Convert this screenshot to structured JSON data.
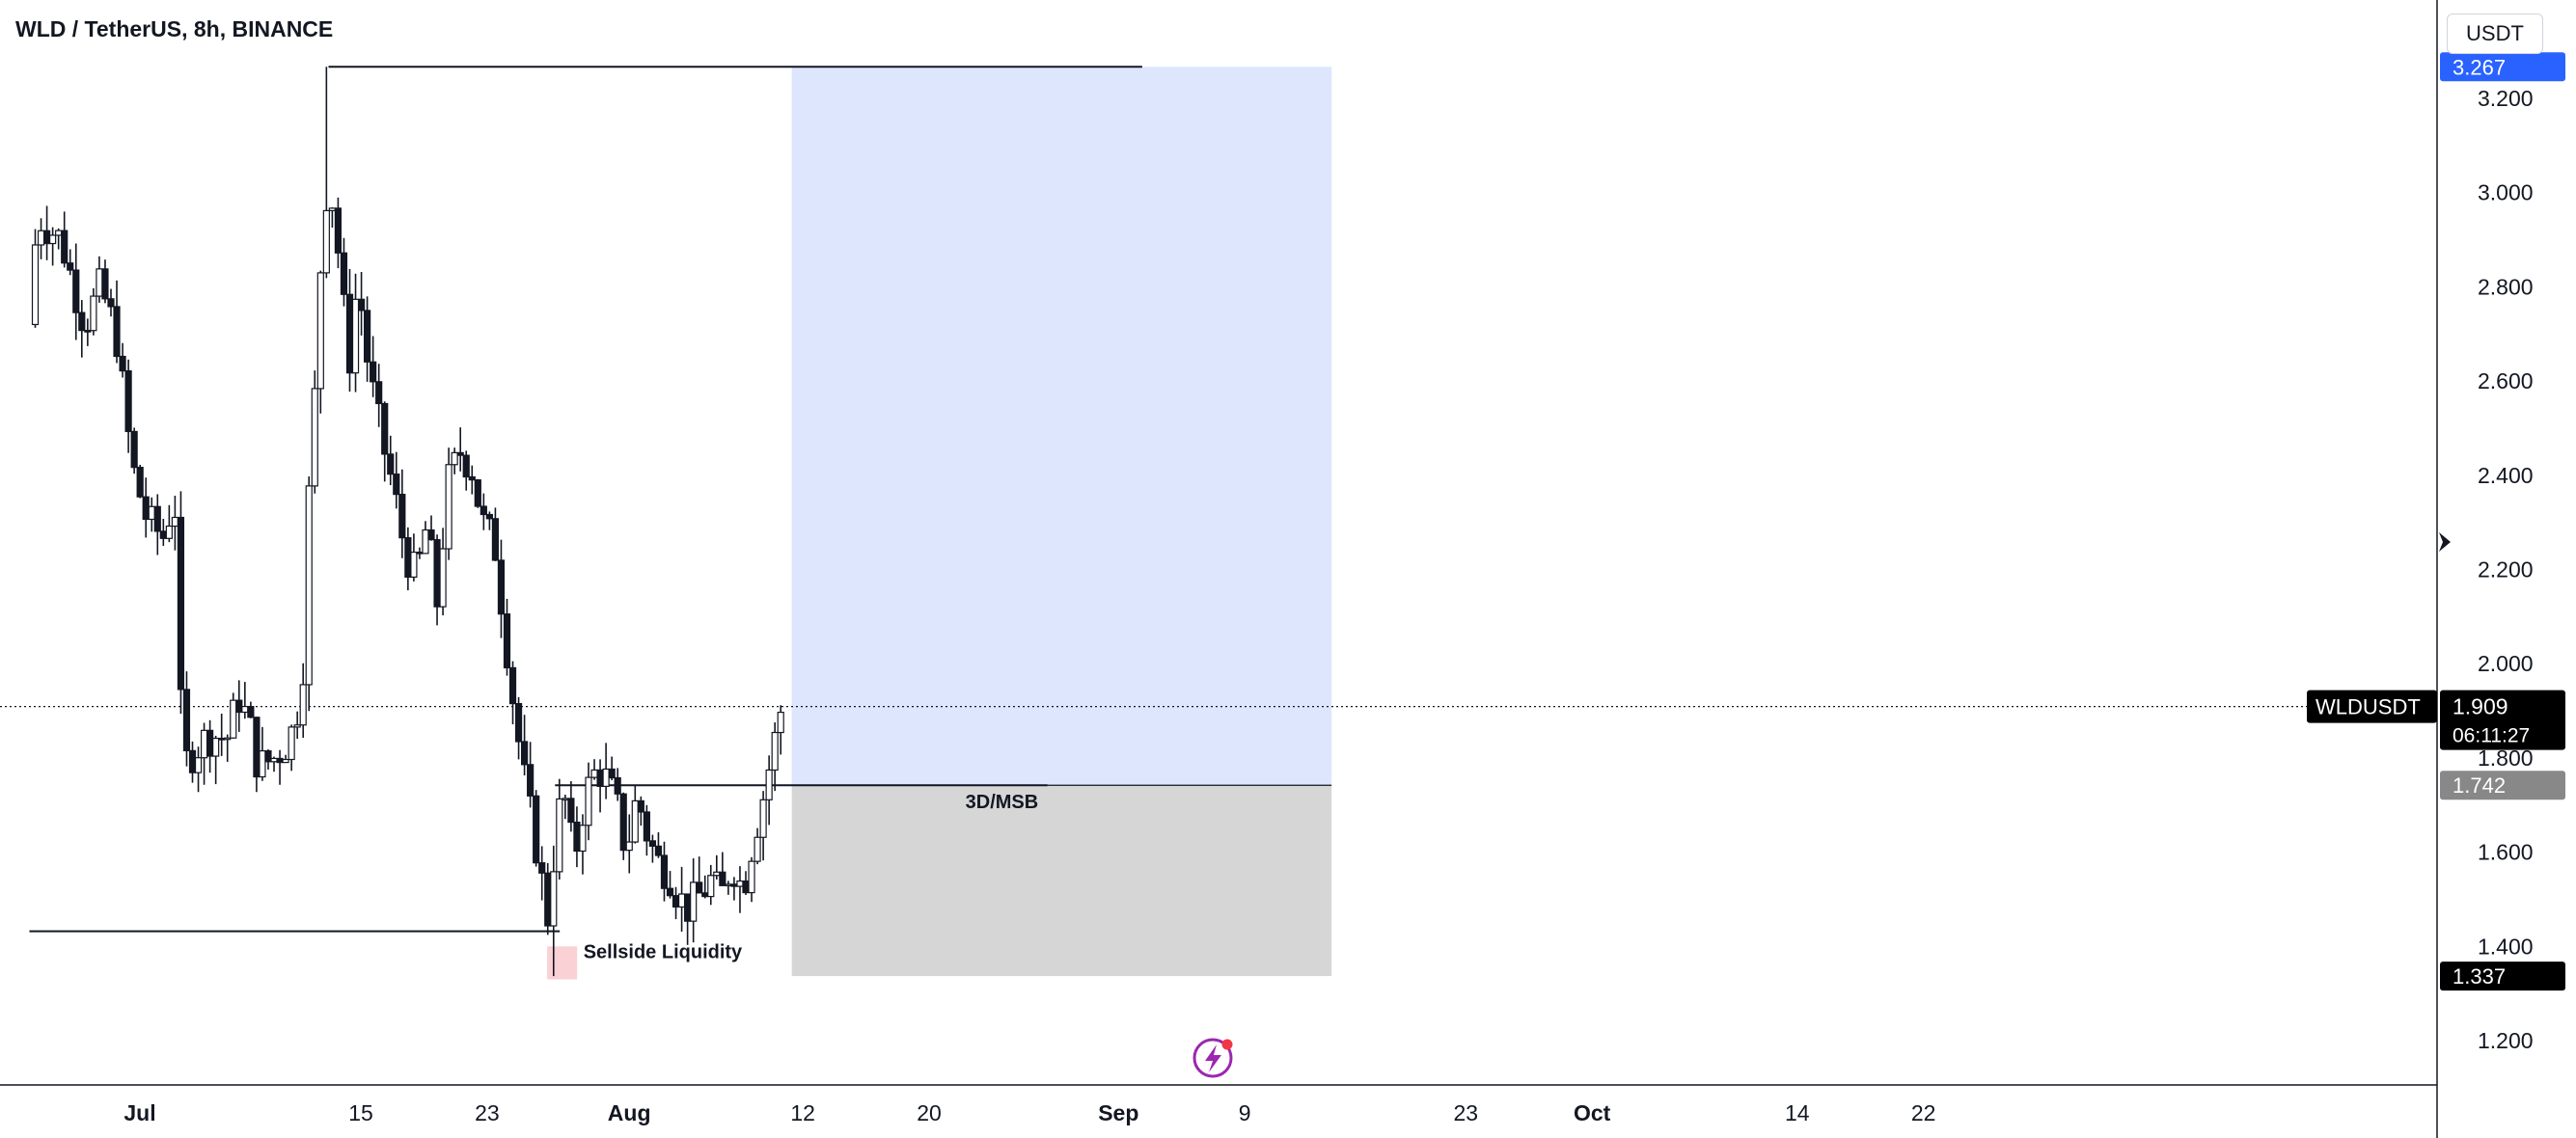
{
  "header": {
    "title": "WLD / TetherUS, 8h, BINANCE"
  },
  "toolbar": {
    "currency_label": "USDT"
  },
  "colors": {
    "candle": "#131722",
    "target_zone": "#dde6fd",
    "risk_zone": "#d6d6d6",
    "liquidity_box": "#fad1d5",
    "badge_blue": "#2962ff",
    "badge_black": "#000000",
    "badge_gray": "#888888"
  },
  "chart_data": {
    "type": "candlestick",
    "symbol": "WLDUSDT",
    "timeframe": "8h",
    "yaxis": {
      "ticks": [
        "1.200",
        "1.400",
        "1.600",
        "1.800",
        "2.000",
        "2.200",
        "2.400",
        "2.600",
        "2.800",
        "3.000",
        "3.200"
      ],
      "ylim": [
        1.1,
        3.33
      ]
    },
    "xaxis": {
      "ticks": [
        {
          "label": "Jul",
          "day": 1,
          "bold": true
        },
        {
          "label": "15",
          "day": 15,
          "bold": false
        },
        {
          "label": "23",
          "day": 23,
          "bold": false
        },
        {
          "label": "Aug",
          "day": 32,
          "bold": true
        },
        {
          "label": "12",
          "day": 43,
          "bold": false
        },
        {
          "label": "20",
          "day": 51,
          "bold": false
        },
        {
          "label": "Sep",
          "day": 63,
          "bold": true
        },
        {
          "label": "9",
          "day": 71,
          "bold": false
        },
        {
          "label": "23",
          "day": 85,
          "bold": false
        },
        {
          "label": "Oct",
          "day": 93,
          "bold": true
        },
        {
          "label": "14",
          "day": 106,
          "bold": false
        },
        {
          "label": "22",
          "day": 114,
          "bold": false
        }
      ]
    },
    "price_path": [
      [
        -6,
        2.72
      ],
      [
        -5.5,
        2.95
      ],
      [
        -4,
        2.9
      ],
      [
        -2.5,
        2.72
      ],
      [
        -1.5,
        2.8
      ],
      [
        -0.5,
        2.7
      ],
      [
        0.5,
        2.42
      ],
      [
        1.5,
        2.3
      ],
      [
        2.5,
        2.27
      ],
      [
        3.2,
        2.36
      ],
      [
        3.7,
        1.78
      ],
      [
        4.5,
        1.82
      ],
      [
        5.5,
        1.85
      ],
      [
        6.5,
        1.84
      ],
      [
        7.3,
        1.93
      ],
      [
        8,
        1.86
      ],
      [
        8.5,
        1.78
      ],
      [
        9.5,
        1.8
      ],
      [
        10.5,
        1.84
      ],
      [
        11.3,
        1.95
      ],
      [
        11.6,
        2.3
      ],
      [
        12,
        2.5
      ],
      [
        12.4,
        2.82
      ],
      [
        12.8,
        3.0
      ],
      [
        13.3,
        2.98
      ],
      [
        13.8,
        2.78
      ],
      [
        14.3,
        2.65
      ],
      [
        14.8,
        2.82
      ],
      [
        15.5,
        2.62
      ],
      [
        16.3,
        2.48
      ],
      [
        17,
        2.38
      ],
      [
        17.8,
        2.24
      ],
      [
        18.5,
        2.18
      ],
      [
        19.2,
        2.3
      ],
      [
        19.8,
        2.12
      ],
      [
        20.5,
        2.38
      ],
      [
        21.3,
        2.45
      ],
      [
        22,
        2.42
      ],
      [
        22.7,
        2.3
      ],
      [
        23.5,
        2.25
      ],
      [
        24.2,
        2.05
      ],
      [
        24.8,
        1.88
      ],
      [
        25.5,
        1.72
      ],
      [
        26.3,
        1.58
      ],
      [
        26.8,
        1.45
      ],
      [
        27.3,
        1.62
      ],
      [
        27.8,
        1.74
      ],
      [
        28.5,
        1.58
      ],
      [
        29.2,
        1.72
      ],
      [
        30,
        1.78
      ],
      [
        30.6,
        1.75
      ],
      [
        31.2,
        1.7
      ],
      [
        31.8,
        1.6
      ],
      [
        32.5,
        1.72
      ],
      [
        33.2,
        1.63
      ],
      [
        33.8,
        1.58
      ],
      [
        34.5,
        1.56
      ],
      [
        35.2,
        1.5
      ],
      [
        35.8,
        1.48
      ],
      [
        36.5,
        1.51
      ],
      [
        37.2,
        1.54
      ],
      [
        37.8,
        1.5
      ],
      [
        38.5,
        1.58
      ],
      [
        39.2,
        1.52
      ],
      [
        39.8,
        1.62
      ],
      [
        40.5,
        1.72
      ],
      [
        41,
        1.8
      ],
      [
        41.6,
        1.9
      ]
    ],
    "candle_count": 129,
    "points": [
      {
        "label": "Swing high",
        "day": 12.95,
        "price": 3.267
      },
      {
        "label": "Sellside liquidity low",
        "day": 27.1,
        "price": 1.337
      }
    ],
    "levels": [
      {
        "name": "top",
        "price": 3.267,
        "from_day": 12.95,
        "to_day": 64.5
      },
      {
        "name": "msb",
        "price": 1.742,
        "from_day": 27.3,
        "to_day": 58.5
      },
      {
        "name": "sellside",
        "price": 1.432,
        "from_day": -6,
        "to_day": 27.6
      },
      {
        "name": "current",
        "price": 1.909,
        "dotted": true
      }
    ],
    "zones": [
      {
        "name": "target",
        "from_day": 42.3,
        "to_day": 76.5,
        "top": 3.267,
        "bottom": 1.742
      },
      {
        "name": "risk",
        "from_day": 42.3,
        "to_day": 76.5,
        "top": 1.742,
        "bottom": 1.337
      },
      {
        "name": "liquidity",
        "from_day": 26.8,
        "to_day": 28.7,
        "top": 1.4,
        "bottom": 1.33
      }
    ],
    "annotations": [
      {
        "text": "Sellside Liquidity",
        "day": 29.1,
        "price": 1.4
      },
      {
        "text": "3D/MSB",
        "day": 53.3,
        "price": 1.718
      }
    ],
    "price_labels": {
      "top_value": "3.267",
      "symbol_name": "WLDUSDT",
      "last_price": "1.909",
      "countdown": "06:11:27",
      "msb_value": "1.742",
      "low_value": "1.337"
    }
  }
}
